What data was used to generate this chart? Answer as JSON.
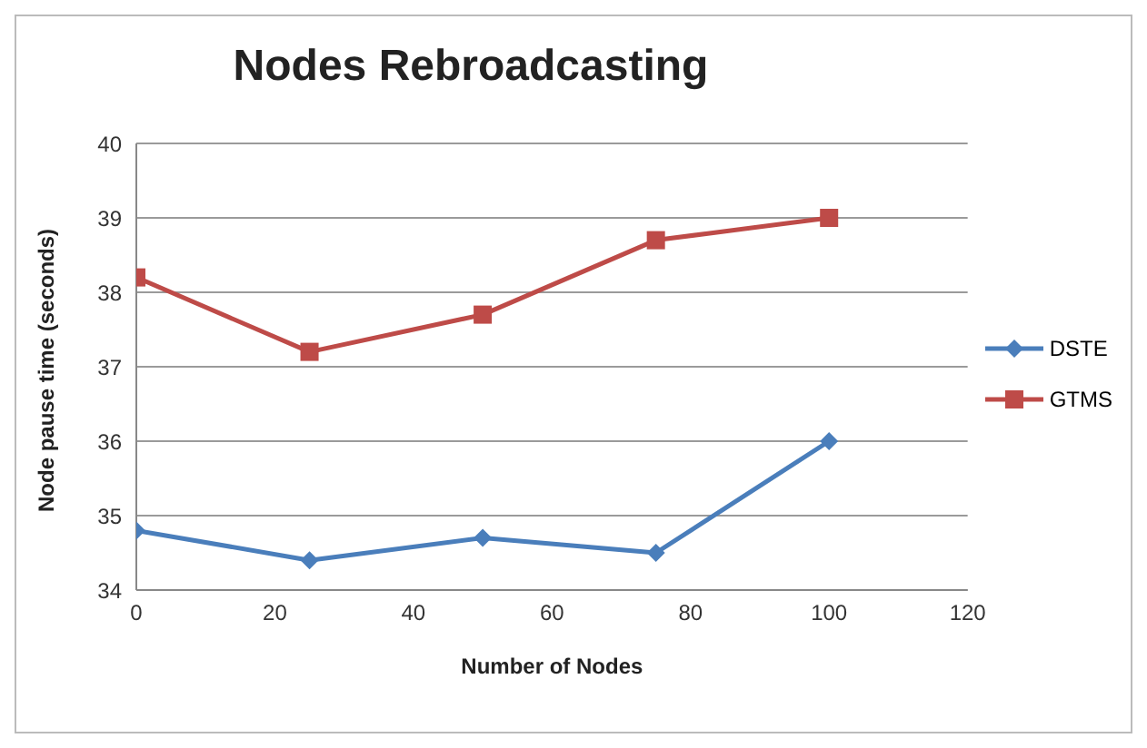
{
  "chart_data": {
    "type": "line",
    "title": "Nodes Rebroadcasting",
    "xlabel": "Number of Nodes",
    "ylabel": "Node pause time (seconds)",
    "x": [
      0,
      25,
      50,
      75,
      100
    ],
    "series": [
      {
        "name": "DSTE",
        "color": "#4a7ebb",
        "marker": "diamond",
        "values": [
          34.8,
          34.4,
          34.7,
          34.5,
          36.0
        ]
      },
      {
        "name": "GTMS",
        "color": "#be4b48",
        "marker": "square",
        "values": [
          38.2,
          37.2,
          37.7,
          38.7,
          39.0
        ]
      }
    ],
    "xlim": [
      0,
      120
    ],
    "xticks": [
      0,
      20,
      40,
      60,
      80,
      100,
      120
    ],
    "ylim": [
      34,
      40
    ],
    "yticks": [
      34,
      35,
      36,
      37,
      38,
      39,
      40
    ],
    "grid": "y",
    "legend": "right",
    "line_style": "solid"
  }
}
